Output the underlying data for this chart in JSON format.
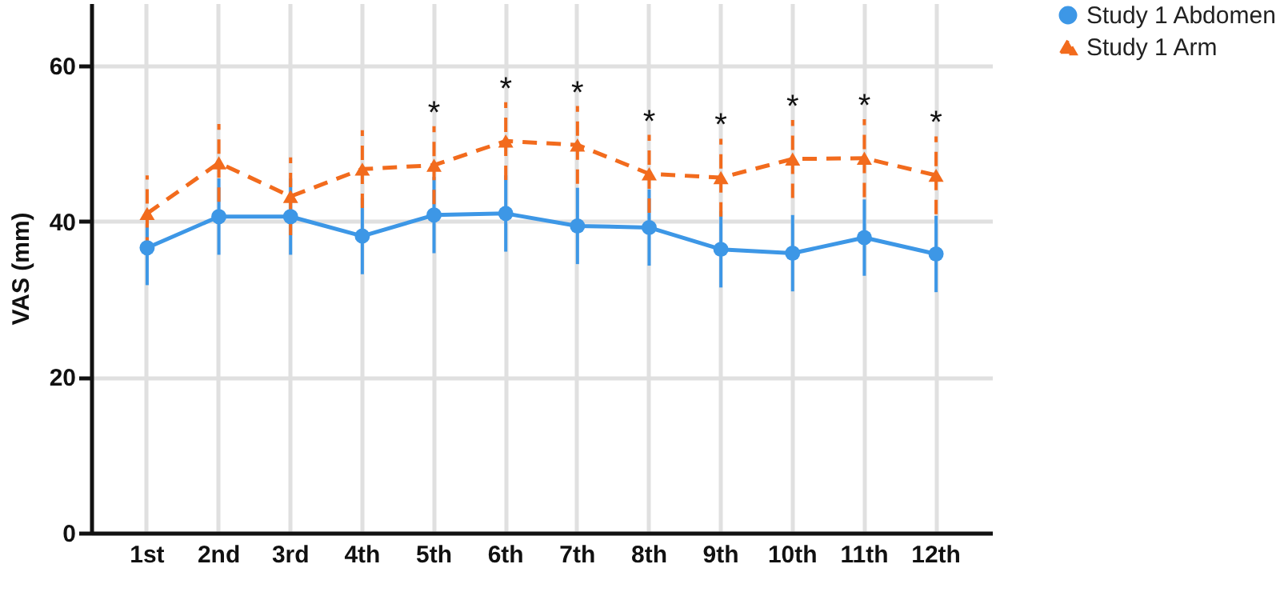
{
  "chart_data": {
    "type": "line",
    "ylabel": "VAS (mm)",
    "categories": [
      "1st",
      "2nd",
      "3rd",
      "4th",
      "5th",
      "6th",
      "7th",
      "8th",
      "9th",
      "10th",
      "11th",
      "12th"
    ],
    "series": [
      {
        "name": "Study 1 Abdomen",
        "color": "#3d97e6",
        "marker": "circle",
        "line_style": "solid",
        "values": [
          36.6,
          40.6,
          40.6,
          38.1,
          40.8,
          41.0,
          39.4,
          39.2,
          36.4,
          35.9,
          37.9,
          35.8
        ],
        "errors": [
          4.8,
          4.9,
          4.9,
          4.9,
          4.9,
          4.9,
          4.9,
          4.9,
          4.9,
          4.9,
          4.9,
          4.9
        ]
      },
      {
        "name": "Study 1 Arm",
        "color": "#f26b1d",
        "marker": "triangle",
        "line_style": "dashed",
        "values": [
          41.0,
          47.5,
          43.2,
          46.7,
          47.2,
          50.3,
          49.8,
          46.1,
          45.6,
          48.0,
          48.1,
          45.9
        ],
        "errors": [
          4.9,
          5,
          5,
          5,
          5,
          5,
          5,
          5,
          5,
          5,
          5,
          5
        ]
      }
    ],
    "annotations": [
      {
        "text": "*",
        "x": "5th",
        "y": 52.2
      },
      {
        "text": "*",
        "x": "6th",
        "y": 55.3
      },
      {
        "text": "*",
        "x": "7th",
        "y": 54.8
      },
      {
        "text": "*",
        "x": "8th",
        "y": 51.1
      },
      {
        "text": "*",
        "x": "9th",
        "y": 50.6
      },
      {
        "text": "*",
        "x": "10th",
        "y": 53.0
      },
      {
        "text": "*",
        "x": "11th",
        "y": 53.1
      },
      {
        "text": "*",
        "x": "12th",
        "y": 50.9
      }
    ],
    "ylim": [
      0,
      68
    ],
    "yticks": [
      0,
      20,
      40,
      60
    ],
    "grid": true,
    "legend": "top right"
  }
}
